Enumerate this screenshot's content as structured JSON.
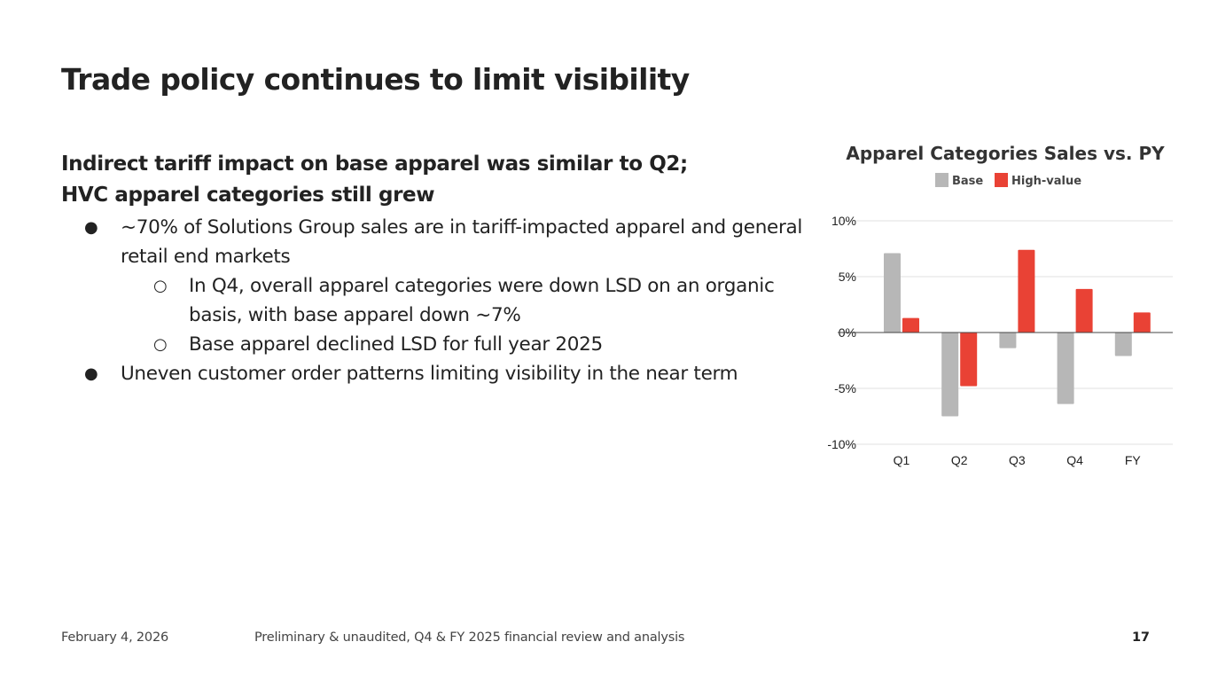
{
  "slide": {
    "title": "Trade policy continues to limit visibility",
    "subheading": [
      "Indirect tariff impact on base apparel was similar to Q2;",
      "HVC apparel categories still grew"
    ],
    "bullets": [
      {
        "level": 1,
        "marker": "●",
        "text": "~70% of Solutions Group sales are in tariff-impacted apparel and general retail end markets"
      },
      {
        "level": 2,
        "marker": "○",
        "text": "In Q4, overall apparel categories were down LSD on an organic basis, with base apparel down ~7%"
      },
      {
        "level": 2,
        "marker": "○",
        "text": "Base apparel declined LSD for full year 2025"
      },
      {
        "level": 1,
        "marker": "●",
        "text": "Uneven customer order patterns limiting visibility in the near term"
      }
    ]
  },
  "footer": {
    "date": "February 4, 2026",
    "description": "Preliminary & unaudited, Q4 & FY 2025 financial review and analysis",
    "page_number": "17"
  },
  "colors": {
    "base": "#b7b7b7",
    "high_value": "#e94235",
    "text": "#222222",
    "grid": "#e0e0e0",
    "zero_line": "#444444"
  },
  "chart_data": {
    "type": "bar",
    "title": "Apparel Categories Sales vs. PY",
    "xlabel": "",
    "ylabel": "",
    "categories": [
      "Q1",
      "Q2",
      "Q3",
      "Q4",
      "FY"
    ],
    "series": [
      {
        "name": "Base",
        "color": "#b7b7b7",
        "values": [
          7.1,
          -7.5,
          -1.4,
          -6.4,
          -2.1
        ]
      },
      {
        "name": "High-value",
        "color": "#e94235",
        "values": [
          1.3,
          -4.8,
          7.4,
          3.9,
          1.8
        ]
      }
    ],
    "ylim": [
      -10,
      10
    ],
    "yticks": [
      10,
      5,
      0,
      -5,
      -10
    ],
    "ytick_labels": [
      "10%",
      "5%",
      "0%",
      "-5%",
      "-10%"
    ],
    "unit": "%",
    "grid": true,
    "legend_position": "top-center"
  }
}
